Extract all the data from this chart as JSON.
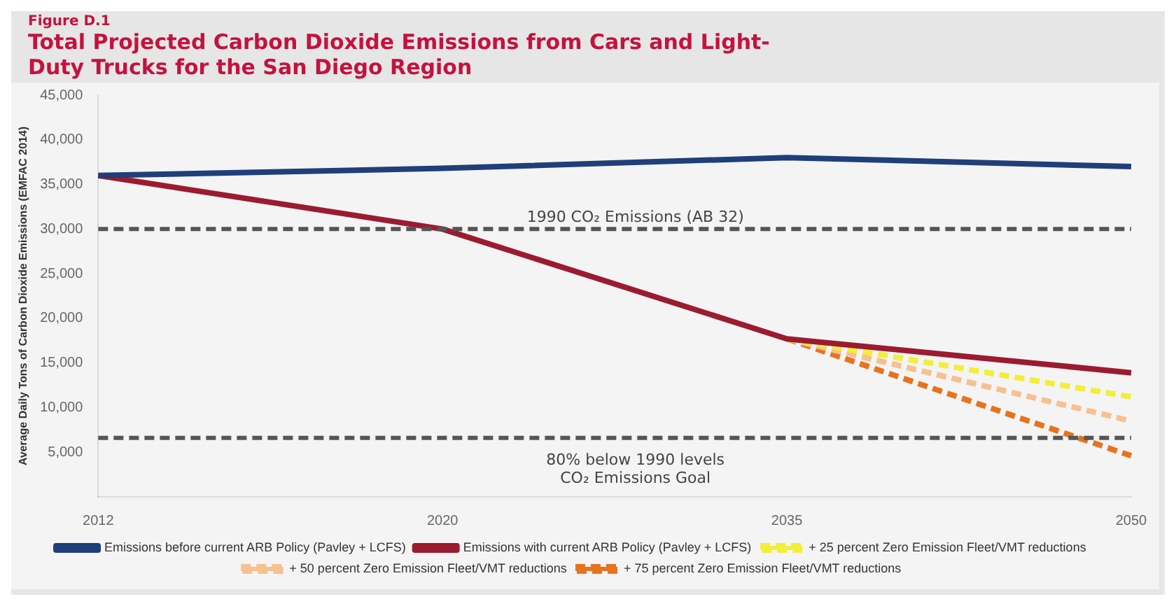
{
  "chart_data": {
    "type": "line",
    "title": "Total Projected Carbon Dioxide Emissions from Cars and Light-Duty Trucks for the San Diego Region",
    "annotations": [
      "Figure D.1"
    ],
    "ylabel": "Average Daily Tons of Carbon Dioxide Emissions (EMFAC 2014)",
    "categories": [
      "2012",
      "2020",
      "2035",
      "2050"
    ],
    "series": [
      {
        "name": "Emissions before current ARB Policy (Pavley + LCFS)",
        "color": "#1f3f7a",
        "values": [
          36000,
          36800,
          38000,
          37000
        ]
      },
      {
        "name": "Emissions with current ARB Policy (Pavley + LCFS)",
        "color": "#9b1b30",
        "values": [
          36000,
          30000,
          17700,
          13900
        ]
      },
      {
        "name": "+ 25 percent Zero Emission Fleet/VMT reductions",
        "color": "#f2ee3a",
        "line_style": "dashed",
        "values": [
          null,
          null,
          17700,
          11200
        ]
      },
      {
        "name": "+ 50 percent Zero Emission Fleet/VMT reductions",
        "color": "#f7c08f",
        "line_style": "dashed",
        "values": [
          null,
          null,
          17700,
          8500
        ]
      },
      {
        "name": "+ 75 percent Zero Emission Fleet/VMT reductions",
        "color": "#e8731e",
        "line_style": "dashed",
        "values": [
          null,
          null,
          17700,
          4600
        ]
      }
    ],
    "ylim": [
      0,
      45000
    ],
    "yticks": [
      {
        "value": 5000,
        "label": "5,000"
      },
      {
        "value": 10000,
        "label": "10,000"
      },
      {
        "value": 15000,
        "label": "15,000"
      },
      {
        "value": 20000,
        "label": "20,000"
      },
      {
        "value": 25000,
        "label": "25,000"
      },
      {
        "value": 30000,
        "label": "30,000"
      },
      {
        "value": 35000,
        "label": "35,000"
      },
      {
        "value": 40000,
        "label": "40,000"
      },
      {
        "value": 45000,
        "label": "45,000"
      }
    ],
    "ref_lines": [
      {
        "axis": "y",
        "value": 30000,
        "label": "1990 CO₂ Emissions (AB 32)",
        "color": "#555555",
        "line_style": "dashed"
      },
      {
        "axis": "y",
        "value": 6600,
        "label": "80% below 1990 levels CO₂ Emissions Goal",
        "color": "#555555",
        "line_style": "dashed"
      }
    ],
    "legend": "bottom",
    "grid": false,
    "marker": "none"
  }
}
